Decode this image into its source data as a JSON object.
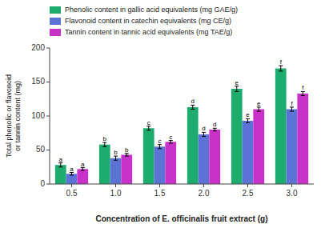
{
  "chart_data": {
    "type": "bar",
    "xlabel": "Concentration of E. officinalis fruit extract (g)",
    "ylabel": "Total phenolic or flavonoid\nor tannin content (mg)",
    "categories": [
      "0.5",
      "1.0",
      "1.5",
      "2.0",
      "2.5",
      "3.0"
    ],
    "series": [
      {
        "name": "Phenolic content in gallic acid equivalents (mg GAE/g)",
        "color": "#1dab6e",
        "values": [
          28,
          58,
          82,
          113,
          140,
          170
        ],
        "errors": [
          3,
          3,
          3,
          3,
          4,
          4
        ],
        "annotations": [
          "a",
          "b",
          "c",
          "d",
          "e",
          "f"
        ]
      },
      {
        "name": "Flavonoid content in catechin equivalents (mg CE/g)",
        "color": "#5b73d4",
        "values": [
          15,
          38,
          55,
          73,
          93,
          110
        ],
        "errors": [
          2,
          3,
          3,
          3,
          3,
          3
        ],
        "annotations": [
          "a",
          "b",
          "c",
          "d",
          "e",
          "f"
        ]
      },
      {
        "name": "Tannin content in tannic acid equivalents (mg TAE/g)",
        "color": "#c932c8",
        "values": [
          22,
          43,
          62,
          80,
          110,
          133
        ],
        "errors": [
          2,
          2,
          2,
          2,
          3,
          3
        ],
        "annotations": [
          "a",
          "b",
          "c",
          "d",
          "e",
          "f"
        ]
      }
    ],
    "ylim": [
      0,
      200
    ],
    "yticks": [
      0,
      50,
      100,
      150,
      200
    ],
    "grid": false,
    "legend": "upper left"
  }
}
